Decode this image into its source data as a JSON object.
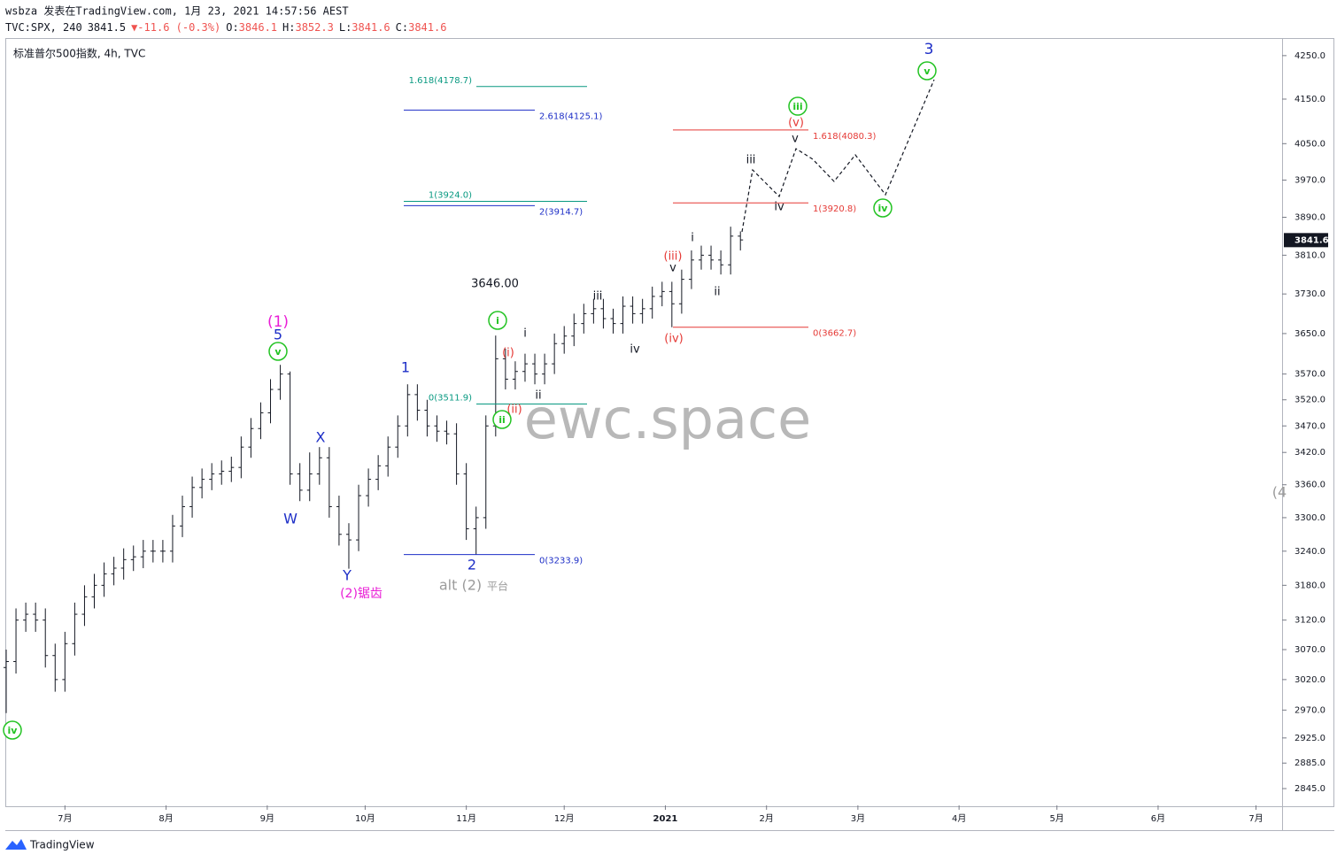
{
  "header": {
    "line1": "wsbza 发表在TradingView.com, 1月 23, 2021 14:57:56 AEST",
    "line2": [
      {
        "text": "TVC:SPX, 240",
        "color": "#131722"
      },
      {
        "text": "3841.5",
        "color": "#131722"
      },
      {
        "text": "▼",
        "color": "#ef5350"
      },
      {
        "text": "-11.6 (-0.3%)",
        "color": "#ef5350"
      },
      {
        "text": "O:",
        "color": "#131722"
      },
      {
        "text": "3846.1",
        "color": "#ef5350"
      },
      {
        "text": "H:",
        "color": "#131722"
      },
      {
        "text": "3852.3",
        "color": "#ef5350"
      },
      {
        "text": "L:",
        "color": "#131722"
      },
      {
        "text": "3841.6",
        "color": "#ef5350"
      },
      {
        "text": "C:",
        "color": "#131722"
      },
      {
        "text": "3841.6",
        "color": "#ef5350"
      }
    ],
    "symbol": "标准普尔500指数, 4h, TVC",
    "watermark": "ewc.space",
    "brand": "TradingView"
  },
  "chart_data": {
    "type": "ohlc",
    "color": "#131722",
    "log_scale": true,
    "x": [
      0,
      3,
      6,
      9,
      12,
      15,
      18,
      21,
      24,
      27,
      30,
      33,
      36,
      39,
      42,
      45,
      48,
      51,
      54,
      57,
      60,
      63,
      66,
      69,
      72,
      75,
      78,
      81,
      84,
      87,
      90,
      93,
      96,
      99,
      102,
      105,
      108,
      111,
      114,
      117,
      120,
      123,
      126,
      129,
      132,
      135,
      138,
      141,
      144,
      147,
      150,
      153,
      156,
      159,
      162,
      165,
      168,
      171,
      174,
      177,
      180,
      183,
      186,
      189,
      192,
      195,
      198,
      201,
      204,
      207,
      210,
      213,
      216,
      219,
      222,
      225
    ],
    "open": [
      3040,
      3050,
      3120,
      3130,
      3120,
      3060,
      3020,
      3080,
      3130,
      3160,
      3180,
      3200,
      3210,
      3225,
      3230,
      3240,
      3240,
      3240,
      3285,
      3320,
      3355,
      3370,
      3380,
      3385,
      3392,
      3430,
      3465,
      3495,
      3540,
      3570,
      3380,
      3350,
      3380,
      3410,
      3320,
      3270,
      3260,
      3340,
      3370,
      3395,
      3430,
      3470,
      3530,
      3500,
      3470,
      3460,
      3455,
      3380,
      3280,
      3300,
      3470,
      3600,
      3560,
      3575,
      3590,
      3570,
      3590,
      3630,
      3645,
      3670,
      3690,
      3700,
      3680,
      3670,
      3705,
      3690,
      3700,
      3725,
      3735,
      3710,
      3760,
      3800,
      3810,
      3800,
      3790,
      3850
    ],
    "high": [
      3070,
      3140,
      3150,
      3150,
      3140,
      3080,
      3100,
      3150,
      3180,
      3200,
      3220,
      3230,
      3245,
      3250,
      3260,
      3260,
      3260,
      3305,
      3340,
      3375,
      3390,
      3400,
      3405,
      3412,
      3450,
      3485,
      3515,
      3560,
      3588,
      3575,
      3400,
      3420,
      3430,
      3430,
      3340,
      3290,
      3360,
      3390,
      3415,
      3450,
      3490,
      3550,
      3550,
      3520,
      3490,
      3480,
      3475,
      3400,
      3320,
      3490,
      3646,
      3620,
      3595,
      3610,
      3610,
      3610,
      3650,
      3665,
      3690,
      3710,
      3720,
      3720,
      3700,
      3725,
      3725,
      3720,
      3745,
      3755,
      3755,
      3780,
      3820,
      3830,
      3830,
      3820,
      3870,
      3860
    ],
    "low": [
      2965,
      3030,
      3100,
      3100,
      3040,
      3000,
      3000,
      3060,
      3110,
      3140,
      3160,
      3180,
      3190,
      3205,
      3210,
      3220,
      3220,
      3220,
      3265,
      3300,
      3335,
      3350,
      3360,
      3365,
      3372,
      3410,
      3445,
      3475,
      3520,
      3360,
      3330,
      3330,
      3360,
      3300,
      3250,
      3209,
      3240,
      3320,
      3350,
      3375,
      3410,
      3450,
      3480,
      3450,
      3440,
      3435,
      3360,
      3260,
      3234,
      3280,
      3450,
      3540,
      3540,
      3555,
      3550,
      3550,
      3570,
      3610,
      3625,
      3650,
      3670,
      3660,
      3650,
      3650,
      3670,
      3670,
      3680,
      3705,
      3662.7,
      3690,
      3740,
      3780,
      3780,
      3770,
      3770,
      3820
    ],
    "close": [
      3050,
      3120,
      3130,
      3120,
      3060,
      3020,
      3080,
      3130,
      3160,
      3180,
      3200,
      3210,
      3225,
      3230,
      3240,
      3240,
      3240,
      3285,
      3320,
      3355,
      3370,
      3380,
      3385,
      3392,
      3430,
      3465,
      3495,
      3540,
      3570,
      3380,
      3350,
      3380,
      3410,
      3320,
      3270,
      3260,
      3340,
      3370,
      3395,
      3430,
      3470,
      3530,
      3500,
      3470,
      3460,
      3455,
      3380,
      3280,
      3300,
      3470,
      3600,
      3560,
      3575,
      3590,
      3570,
      3590,
      3630,
      3645,
      3670,
      3690,
      3700,
      3680,
      3670,
      3705,
      3690,
      3700,
      3725,
      3735,
      3710,
      3760,
      3800,
      3810,
      3800,
      3790,
      3850,
      3842
    ],
    "xlim": [
      0,
      391
    ],
    "ylim": [
      2819,
      4289
    ],
    "xticks": [
      {
        "value": 18,
        "label": "7月"
      },
      {
        "value": 49,
        "label": "8月"
      },
      {
        "value": 80,
        "label": "9月"
      },
      {
        "value": 110,
        "label": "10月"
      },
      {
        "value": 141,
        "label": "11月"
      },
      {
        "value": 171,
        "label": "12月"
      },
      {
        "value": 202,
        "label": "2021"
      },
      {
        "value": 233,
        "label": "2月"
      },
      {
        "value": 261,
        "label": "3月"
      },
      {
        "value": 292,
        "label": "4月"
      },
      {
        "value": 322,
        "label": "5月"
      },
      {
        "value": 353,
        "label": "6月"
      },
      {
        "value": 383,
        "label": "7月"
      }
    ],
    "yticks": [
      {
        "value": 4250,
        "label": "4250.0"
      },
      {
        "value": 4150,
        "label": "4150.0"
      },
      {
        "value": 4050,
        "label": "4050.0"
      },
      {
        "value": 3970,
        "label": "3970.0"
      },
      {
        "value": 3890,
        "label": "3890.0"
      },
      {
        "value": 3810,
        "label": "3810.0"
      },
      {
        "value": 3730,
        "label": "3730.0"
      },
      {
        "value": 3650,
        "label": "3650.0"
      },
      {
        "value": 3570,
        "label": "3570.0"
      },
      {
        "value": 3520,
        "label": "3520.0"
      },
      {
        "value": 3470,
        "label": "3470.0"
      },
      {
        "value": 3420,
        "label": "3420.0"
      },
      {
        "value": 3360,
        "label": "3360.0"
      },
      {
        "value": 3300,
        "label": "3300.0"
      },
      {
        "value": 3240,
        "label": "3240.0"
      },
      {
        "value": 3180,
        "label": "3180.0"
      },
      {
        "value": 3120,
        "label": "3120.0"
      },
      {
        "value": 3070,
        "label": "3070.0"
      },
      {
        "value": 3020,
        "label": "3020.0"
      },
      {
        "value": 2970,
        "label": "2970.0"
      },
      {
        "value": 2925,
        "label": "2925.0"
      },
      {
        "value": 2885,
        "label": "2885.0"
      },
      {
        "value": 2845,
        "label": "2845.0"
      }
    ],
    "last_price": 3841.6,
    "fib_levels": [
      {
        "label": "1.618(4178.7)",
        "value": 4178.7,
        "color": "#089981"
      },
      {
        "label": "2.618(4125.1)",
        "value": 4125.1,
        "color": "#1e2fc7"
      },
      {
        "label": "1(3924.0)",
        "value": 3924.0,
        "color": "#089981"
      },
      {
        "label": "2(3914.7)",
        "value": 3914.7,
        "color": "#1e2fc7"
      },
      {
        "label": "0(3511.9)",
        "value": 3511.9,
        "color": "#089981"
      },
      {
        "label": "0(3233.9)",
        "value": 3233.9,
        "color": "#1e2fc7"
      },
      {
        "label": "1.618(4080.3)",
        "value": 4080.3,
        "color": "#e53935"
      },
      {
        "label": "1(3920.8)",
        "value": 3920.8,
        "color": "#e53935"
      },
      {
        "label": "0(3662.7)",
        "value": 3662.7,
        "color": "#e53935"
      }
    ],
    "annotations": [
      {
        "text": "(1)",
        "color": "#e91ed6"
      },
      {
        "text": "5",
        "color": "#1e2fc7"
      },
      {
        "text": "v",
        "color": "#22c322",
        "circled": true
      },
      {
        "text": "W",
        "color": "#1e2fc7"
      },
      {
        "text": "X",
        "color": "#1e2fc7"
      },
      {
        "text": "Y",
        "color": "#1e2fc7"
      },
      {
        "text": "(2)锯齿",
        "color": "#e91ed6"
      },
      {
        "text": "1",
        "color": "#1e2fc7"
      },
      {
        "text": "2",
        "color": "#1e2fc7"
      },
      {
        "text": "alt (2)",
        "color": "#9b9b9b"
      },
      {
        "text": "平台",
        "color": "#9b9b9b"
      },
      {
        "text": "3646.00",
        "color": "#131722"
      },
      {
        "text": "i",
        "color": "#22c322",
        "circled": true
      },
      {
        "text": "(i)",
        "color": "#e53935"
      },
      {
        "text": "i",
        "color": "#131722"
      },
      {
        "text": "(ii)",
        "color": "#e53935"
      },
      {
        "text": "ii",
        "color": "#22c322",
        "circled": true
      },
      {
        "text": "ii",
        "color": "#131722"
      },
      {
        "text": "iii",
        "color": "#131722"
      },
      {
        "text": "iv",
        "color": "#131722"
      },
      {
        "text": "(iii)",
        "color": "#e53935"
      },
      {
        "text": "v",
        "color": "#131722"
      },
      {
        "text": "(iv)",
        "color": "#e53935"
      },
      {
        "text": "i",
        "color": "#131722"
      },
      {
        "text": "ii",
        "color": "#131722"
      },
      {
        "text": "iii",
        "color": "#131722"
      },
      {
        "text": "iv",
        "color": "#131722"
      },
      {
        "text": "v",
        "color": "#131722"
      },
      {
        "text": "(v)",
        "color": "#e53935"
      },
      {
        "text": "iii",
        "color": "#22c322",
        "circled": true
      },
      {
        "text": "iv",
        "color": "#22c322",
        "circled": true
      },
      {
        "text": "3",
        "color": "#1e2fc7"
      },
      {
        "text": "v",
        "color": "#22c322",
        "circled": true
      },
      {
        "text": "iv",
        "color": "#22c322",
        "circled": true
      },
      {
        "text": "(4",
        "color": "#9b9b9b"
      }
    ]
  }
}
